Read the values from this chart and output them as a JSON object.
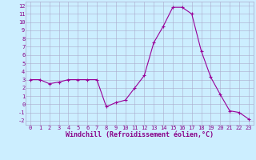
{
  "x_data": [
    0,
    1,
    2,
    3,
    4,
    5,
    6,
    7,
    8,
    9,
    10,
    11,
    12,
    13,
    14,
    15,
    16,
    17,
    18,
    19,
    20,
    21,
    22,
    23
  ],
  "y_data": [
    3.0,
    3.0,
    2.5,
    2.7,
    3.0,
    3.0,
    3.0,
    3.0,
    -0.3,
    0.2,
    0.5,
    2.0,
    3.5,
    7.5,
    9.5,
    11.8,
    11.8,
    11.0,
    6.5,
    3.3,
    1.2,
    -0.8,
    -1.0,
    -1.8
  ],
  "line_color": "#990099",
  "marker_color": "#990099",
  "bg_color": "#cceeff",
  "grid_color": "#aaaacc",
  "xlabel": "Windchill (Refroidissement éolien,°C)",
  "ylim": [
    -2.5,
    12.5
  ],
  "xlim": [
    -0.5,
    23.5
  ],
  "yticks": [
    -2,
    -1,
    0,
    1,
    2,
    3,
    4,
    5,
    6,
    7,
    8,
    9,
    10,
    11,
    12
  ],
  "xticks": [
    0,
    1,
    2,
    3,
    4,
    5,
    6,
    7,
    8,
    9,
    10,
    11,
    12,
    13,
    14,
    15,
    16,
    17,
    18,
    19,
    20,
    21,
    22,
    23
  ],
  "font_color": "#880088",
  "label_fontsize": 5.5,
  "tick_fontsize": 5.0,
  "xlabel_fontsize": 6.0
}
